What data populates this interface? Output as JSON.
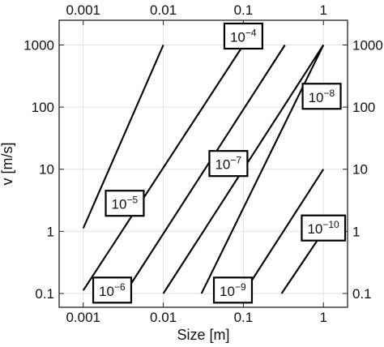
{
  "chart_data": {
    "type": "line",
    "xlabel": "Size [m]",
    "ylabel": "v [m/s]",
    "x_scale": "log",
    "y_scale": "log",
    "xlim": [
      0.0005,
      2
    ],
    "ylim": [
      0.06,
      2500
    ],
    "x_ticks": [
      {
        "value": 0.001,
        "label": "0.001"
      },
      {
        "value": 0.01,
        "label": "0.01"
      },
      {
        "value": 0.1,
        "label": "0.1"
      },
      {
        "value": 1,
        "label": "1"
      }
    ],
    "y_ticks": [
      {
        "value": 0.1,
        "label": "0.1"
      },
      {
        "value": 1,
        "label": "1"
      },
      {
        "value": 10,
        "label": "10"
      },
      {
        "value": 100,
        "label": "100"
      },
      {
        "value": 1000,
        "label": "1000"
      }
    ],
    "grid": true,
    "series": [
      {
        "name": "10^-4",
        "label_base": "10",
        "label_exp": "−4",
        "label_at": [
          0.1,
          1350
        ],
        "x": [
          0.001,
          0.01
        ],
        "y": [
          1.12,
          1000
        ]
      },
      {
        "name": "10^-5",
        "label_base": "10",
        "label_exp": "−5",
        "label_at": [
          0.0033,
          2.75
        ],
        "x": [
          0.001,
          0.1
        ],
        "y": [
          0.112,
          1000
        ]
      },
      {
        "name": "10^-6",
        "label_base": "10",
        "label_exp": "−6",
        "label_at": [
          0.0023,
          0.11
        ],
        "x": [
          0.0033,
          0.33
        ],
        "y": [
          0.1,
          1000
        ]
      },
      {
        "name": "10^-7",
        "label_base": "10",
        "label_exp": "−7",
        "label_at": [
          0.065,
          12
        ],
        "x": [
          0.01,
          1
        ],
        "y": [
          0.1,
          1000
        ]
      },
      {
        "name": "10^-8",
        "label_base": "10",
        "label_exp": "−8",
        "label_at": [
          0.95,
          145
        ],
        "x": [
          0.03,
          1
        ],
        "y": [
          0.1,
          1000
        ]
      },
      {
        "name": "10^-9",
        "label_base": "10",
        "label_exp": "−9",
        "label_at": [
          0.074,
          0.11
        ],
        "x": [
          0.1,
          1
        ],
        "y": [
          0.1,
          10
        ]
      },
      {
        "name": "10^-10",
        "label_base": "10",
        "label_exp": "−10",
        "label_at": [
          1.0,
          1.1
        ],
        "x": [
          0.3,
          1
        ],
        "y": [
          0.1,
          1
        ]
      }
    ]
  }
}
